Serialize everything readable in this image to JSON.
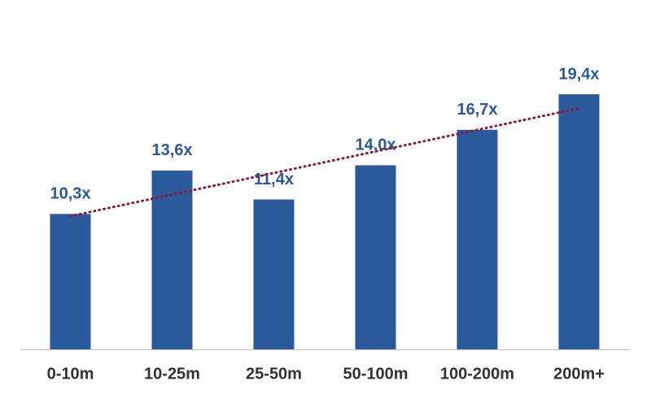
{
  "chart_data": {
    "type": "bar",
    "categories": [
      "0-10m",
      "10-25m",
      "25-50m",
      "50-100m",
      "100-200m",
      "200m+"
    ],
    "values": [
      10.3,
      13.6,
      11.4,
      14.0,
      16.7,
      19.4
    ],
    "value_labels": [
      "10,3x",
      "13,6x",
      "11,4x",
      "14,0x",
      "16,7x",
      "19,4x"
    ],
    "color": "#2a5a9b",
    "ylim": [
      0,
      22
    ],
    "trendline": true,
    "trendline_color": "#8b1a3a"
  }
}
